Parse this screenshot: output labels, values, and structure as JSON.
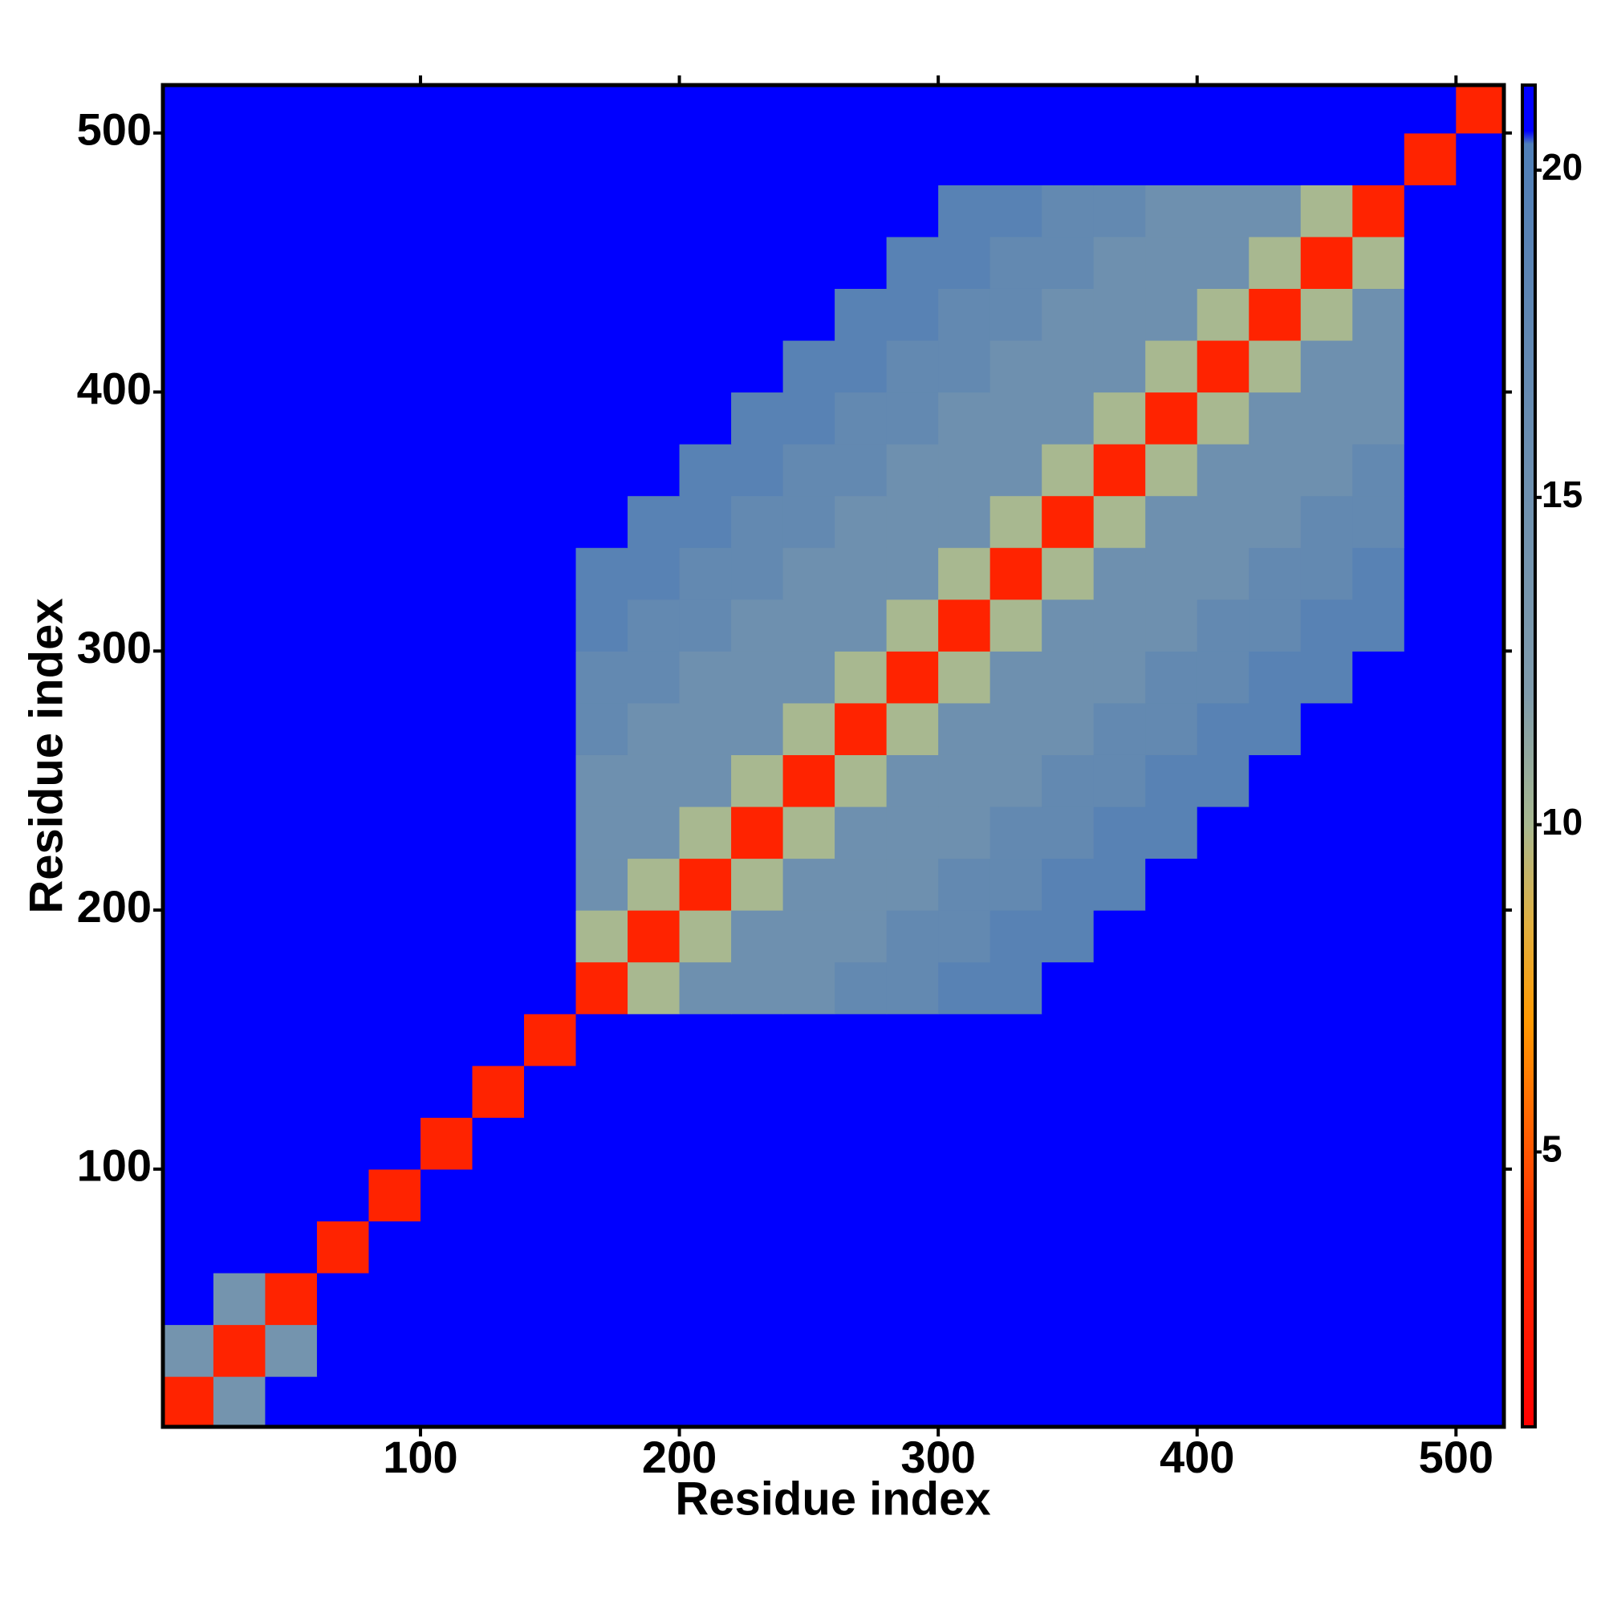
{
  "chart_data": {
    "type": "heatmap",
    "xlabel": "Residue index",
    "ylabel": "Residue index",
    "xlim": [
      0.5,
      518.5
    ],
    "ylim": [
      0.5,
      518.5
    ],
    "xticks": [
      100,
      200,
      300,
      400,
      500
    ],
    "yticks": [
      100,
      200,
      300,
      400,
      500
    ],
    "bins": [
      0,
      20,
      40,
      60,
      80,
      100,
      120,
      140,
      160,
      180,
      200,
      220,
      240,
      260,
      280,
      300,
      320,
      340,
      360,
      380,
      400,
      420,
      440,
      460,
      480,
      500,
      520
    ],
    "zlim": [
      0.8,
      21.3
    ],
    "zticks": [
      5,
      10,
      15,
      20
    ],
    "colorscale": [
      [
        0.8,
        "#ff0000"
      ],
      [
        4,
        "#ff3300"
      ],
      [
        7,
        "#ff9900"
      ],
      [
        8.5,
        "#e0b040"
      ],
      [
        10,
        "#a8b890"
      ],
      [
        12,
        "#7f9bab"
      ],
      [
        19,
        "#5882b4"
      ],
      [
        20.4,
        "#4f7fb8"
      ],
      [
        20.6,
        "#0000ff"
      ],
      [
        21.3,
        "#0000ff"
      ]
    ],
    "z": [
      [
        3,
        14,
        21,
        21,
        21,
        21,
        21,
        21,
        21,
        21,
        21,
        21,
        21,
        21,
        21,
        21,
        21,
        21,
        21,
        21,
        21,
        21,
        21,
        21,
        21,
        21
      ],
      [
        14,
        3,
        14,
        21,
        21,
        21,
        21,
        21,
        21,
        21,
        21,
        21,
        21,
        21,
        21,
        21,
        21,
        21,
        21,
        21,
        21,
        21,
        21,
        21,
        21,
        21
      ],
      [
        21,
        14,
        3,
        21,
        21,
        21,
        21,
        21,
        21,
        21,
        21,
        21,
        21,
        21,
        21,
        21,
        21,
        21,
        21,
        21,
        21,
        21,
        21,
        21,
        21,
        21
      ],
      [
        21,
        21,
        21,
        3,
        21,
        21,
        21,
        21,
        21,
        21,
        21,
        21,
        21,
        21,
        21,
        21,
        21,
        21,
        21,
        21,
        21,
        21,
        21,
        21,
        21,
        21
      ],
      [
        21,
        21,
        21,
        21,
        3,
        21,
        21,
        21,
        21,
        21,
        21,
        21,
        21,
        21,
        21,
        21,
        21,
        21,
        21,
        21,
        21,
        21,
        21,
        21,
        21,
        21
      ],
      [
        21,
        21,
        21,
        21,
        21,
        3,
        21,
        21,
        21,
        21,
        21,
        21,
        21,
        21,
        21,
        21,
        21,
        21,
        21,
        21,
        21,
        21,
        21,
        21,
        21,
        21
      ],
      [
        21,
        21,
        21,
        21,
        21,
        21,
        3,
        21,
        21,
        21,
        21,
        21,
        21,
        21,
        21,
        21,
        21,
        21,
        21,
        21,
        21,
        21,
        21,
        21,
        21,
        21
      ],
      [
        21,
        21,
        21,
        21,
        21,
        21,
        21,
        3,
        21,
        21,
        21,
        21,
        21,
        21,
        21,
        21,
        21,
        21,
        21,
        21,
        21,
        21,
        21,
        21,
        21,
        21
      ],
      [
        21,
        21,
        21,
        21,
        21,
        21,
        21,
        21,
        3,
        10,
        15,
        15,
        15,
        17,
        17,
        19,
        19,
        21,
        21,
        21,
        21,
        21,
        21,
        21,
        21,
        21
      ],
      [
        21,
        21,
        21,
        21,
        21,
        21,
        21,
        21,
        10,
        3,
        10,
        15,
        15,
        15,
        17,
        17,
        19,
        19,
        21,
        21,
        21,
        21,
        21,
        21,
        21,
        21
      ],
      [
        21,
        21,
        21,
        21,
        21,
        21,
        21,
        21,
        15,
        10,
        3,
        10,
        15,
        15,
        15,
        17,
        17,
        19,
        19,
        21,
        21,
        21,
        21,
        21,
        21,
        21
      ],
      [
        21,
        21,
        21,
        21,
        21,
        21,
        21,
        21,
        15,
        15,
        10,
        3,
        10,
        15,
        15,
        15,
        17,
        17,
        19,
        19,
        21,
        21,
        21,
        21,
        21,
        21
      ],
      [
        21,
        21,
        21,
        21,
        21,
        21,
        21,
        21,
        15,
        15,
        15,
        10,
        3,
        10,
        15,
        15,
        15,
        17,
        17,
        19,
        19,
        21,
        21,
        21,
        21,
        21
      ],
      [
        21,
        21,
        21,
        21,
        21,
        21,
        21,
        21,
        17,
        15,
        15,
        15,
        10,
        3,
        10,
        15,
        15,
        15,
        17,
        17,
        19,
        19,
        21,
        21,
        21,
        21
      ],
      [
        21,
        21,
        21,
        21,
        21,
        21,
        21,
        21,
        17,
        17,
        15,
        15,
        15,
        10,
        3,
        10,
        15,
        15,
        15,
        17,
        17,
        19,
        19,
        21,
        21,
        21
      ],
      [
        21,
        21,
        21,
        21,
        21,
        21,
        21,
        21,
        19,
        17,
        17,
        15,
        15,
        15,
        10,
        3,
        10,
        15,
        15,
        15,
        17,
        17,
        19,
        19,
        21,
        21
      ],
      [
        21,
        21,
        21,
        21,
        21,
        21,
        21,
        21,
        19,
        19,
        17,
        17,
        15,
        15,
        15,
        10,
        3,
        10,
        15,
        15,
        15,
        17,
        17,
        19,
        21,
        21
      ],
      [
        21,
        21,
        21,
        21,
        21,
        21,
        21,
        21,
        21,
        19,
        19,
        17,
        17,
        15,
        15,
        15,
        10,
        3,
        10,
        15,
        15,
        15,
        17,
        17,
        21,
        21
      ],
      [
        21,
        21,
        21,
        21,
        21,
        21,
        21,
        21,
        21,
        21,
        19,
        19,
        17,
        17,
        15,
        15,
        15,
        10,
        3,
        10,
        15,
        15,
        15,
        17,
        21,
        21
      ],
      [
        21,
        21,
        21,
        21,
        21,
        21,
        21,
        21,
        21,
        21,
        21,
        19,
        19,
        17,
        17,
        15,
        15,
        15,
        10,
        3,
        10,
        15,
        15,
        15,
        21,
        21
      ],
      [
        21,
        21,
        21,
        21,
        21,
        21,
        21,
        21,
        21,
        21,
        21,
        21,
        19,
        19,
        17,
        17,
        15,
        15,
        15,
        10,
        3,
        10,
        15,
        15,
        21,
        21
      ],
      [
        21,
        21,
        21,
        21,
        21,
        21,
        21,
        21,
        21,
        21,
        21,
        21,
        21,
        19,
        19,
        17,
        17,
        15,
        15,
        15,
        10,
        3,
        10,
        15,
        21,
        21
      ],
      [
        21,
        21,
        21,
        21,
        21,
        21,
        21,
        21,
        21,
        21,
        21,
        21,
        21,
        21,
        19,
        19,
        17,
        17,
        15,
        15,
        15,
        10,
        3,
        10,
        21,
        21
      ],
      [
        21,
        21,
        21,
        21,
        21,
        21,
        21,
        21,
        21,
        21,
        21,
        21,
        21,
        21,
        21,
        19,
        19,
        17,
        17,
        15,
        15,
        15,
        10,
        3,
        21,
        21
      ],
      [
        21,
        21,
        21,
        21,
        21,
        21,
        21,
        21,
        21,
        21,
        21,
        21,
        21,
        21,
        21,
        21,
        21,
        21,
        21,
        21,
        21,
        21,
        21,
        21,
        3,
        21
      ],
      [
        21,
        21,
        21,
        21,
        21,
        21,
        21,
        21,
        21,
        21,
        21,
        21,
        21,
        21,
        21,
        21,
        21,
        21,
        21,
        21,
        21,
        21,
        21,
        21,
        21,
        3
      ]
    ]
  }
}
